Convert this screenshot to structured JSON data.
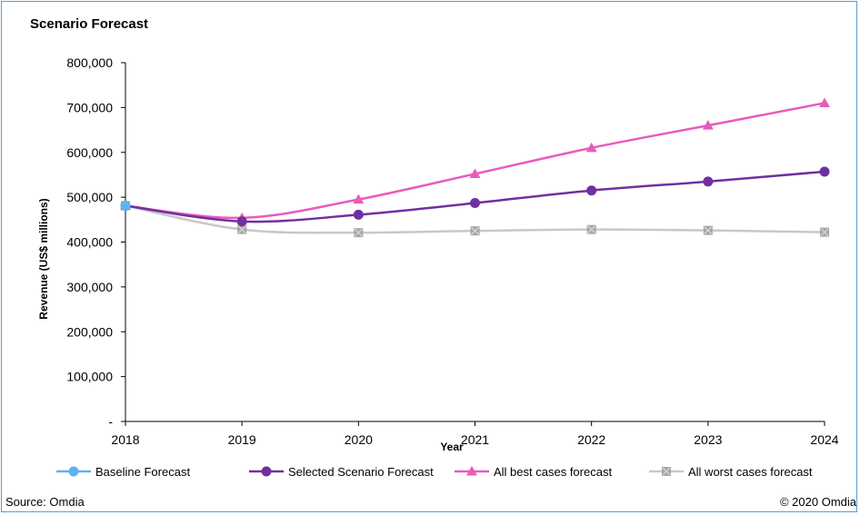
{
  "chart_data": {
    "type": "line",
    "title": "Scenario Forecast",
    "xlabel": "Year",
    "ylabel": "Revenue (US$ millions)",
    "x": [
      "2018",
      "2019",
      "2020",
      "2021",
      "2022",
      "2023",
      "2024"
    ],
    "y_ticks": [
      {
        "value": 0,
        "label": "-"
      },
      {
        "value": 100000,
        "label": "100,000"
      },
      {
        "value": 200000,
        "label": "200,000"
      },
      {
        "value": 300000,
        "label": "300,000"
      },
      {
        "value": 400000,
        "label": "400,000"
      },
      {
        "value": 500000,
        "label": "500,000"
      },
      {
        "value": 600000,
        "label": "600,000"
      },
      {
        "value": 700000,
        "label": "700,000"
      },
      {
        "value": 800000,
        "label": "800,000"
      }
    ],
    "ylim": [
      0,
      800000
    ],
    "grid": false,
    "legend_position": "bottom",
    "series": [
      {
        "name": "Baseline Forecast",
        "color": "#5ab4f0",
        "marker": "circle",
        "values": [
          481000,
          null,
          null,
          null,
          null,
          null,
          null
        ]
      },
      {
        "name": "Selected Scenario Forecast",
        "color": "#7030a0",
        "marker": "circle",
        "values": [
          481000,
          446000,
          461000,
          487000,
          515000,
          535000,
          557000
        ]
      },
      {
        "name": "All best cases forecast",
        "color": "#e85bbc",
        "marker": "triangle",
        "values": [
          481000,
          454000,
          495000,
          552000,
          610000,
          660000,
          710000
        ]
      },
      {
        "name": "All worst cases forecast",
        "color": "#c8c8c8",
        "marker": "square",
        "values": [
          481000,
          428000,
          421000,
          425000,
          428000,
          426000,
          422000
        ]
      }
    ],
    "source": "Source: Omdia",
    "copyright": "© 2020 Omdia"
  }
}
